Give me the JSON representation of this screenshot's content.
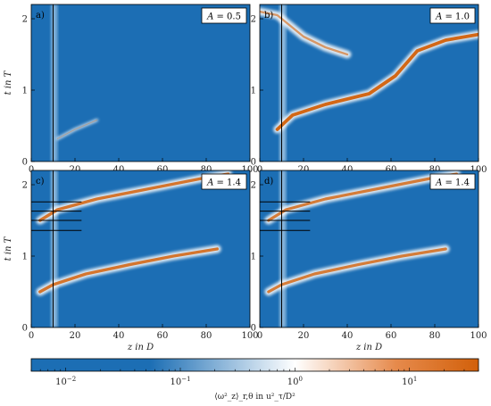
{
  "chart_data": [
    {
      "type": "heatmap",
      "panel": "a)",
      "annotation": "A = 0.5",
      "annotation_var": "A",
      "annotation_value": "= 0.5",
      "xlabel": "",
      "ylabel": "t in T",
      "xlim": [
        0,
        100
      ],
      "ylim": [
        0,
        2.2
      ],
      "xticks": [
        0,
        20,
        40,
        60,
        80,
        100
      ],
      "yticks": [
        0,
        1,
        2
      ],
      "vline_z": 10,
      "hlines": [],
      "features": [
        {
          "kind": "band",
          "z0": 9,
          "z1": 12,
          "t0": 0,
          "t1": 2.2,
          "intensity": 0.25
        },
        {
          "kind": "streak",
          "points": [
            [
              12,
              0.32
            ],
            [
              20,
              0.45
            ],
            [
              30,
              0.58
            ]
          ],
          "intensity": 0.3
        }
      ]
    },
    {
      "type": "heatmap",
      "panel": "b)",
      "annotation": "A = 1.0",
      "annotation_var": "A",
      "annotation_value": "= 1.0",
      "xlabel": "",
      "ylabel": "",
      "xlim": [
        0,
        100
      ],
      "ylim": [
        0,
        2.2
      ],
      "xticks": [
        0,
        20,
        40,
        60,
        80,
        100
      ],
      "yticks": [
        0,
        1,
        2
      ],
      "vline_z": 10,
      "hlines": [],
      "features": [
        {
          "kind": "band",
          "z0": 9,
          "z1": 12,
          "t0": 0,
          "t1": 2.2,
          "intensity": 0.35
        },
        {
          "kind": "wave",
          "points": [
            [
              8,
              0.45
            ],
            [
              15,
              0.65
            ],
            [
              30,
              0.8
            ],
            [
              50,
              0.95
            ],
            [
              62,
              1.2
            ],
            [
              72,
              1.55
            ],
            [
              85,
              1.7
            ],
            [
              100,
              1.78
            ]
          ],
          "intensity": 0.95
        },
        {
          "kind": "wave",
          "points": [
            [
              0,
              2.1
            ],
            [
              8,
              2.05
            ],
            [
              20,
              1.75
            ],
            [
              30,
              1.6
            ],
            [
              40,
              1.5
            ]
          ],
          "intensity": 0.6
        }
      ]
    },
    {
      "type": "heatmap",
      "panel": "c)",
      "annotation": "A = 1.4",
      "annotation_var": "A",
      "annotation_value": "= 1.4",
      "xlabel": "z in D",
      "ylabel": "t in T",
      "xlim": [
        0,
        100
      ],
      "ylim": [
        0,
        2.2
      ],
      "xticks": [
        0,
        20,
        40,
        60,
        80,
        100
      ],
      "yticks": [
        0,
        1,
        2
      ],
      "vline_z": 10,
      "hlines": [
        1.36,
        1.5,
        1.63,
        1.76
      ],
      "features": [
        {
          "kind": "band",
          "z0": 9,
          "z1": 12,
          "t0": 0,
          "t1": 2.2,
          "intensity": 0.3
        },
        {
          "kind": "wave",
          "points": [
            [
              4,
              0.5
            ],
            [
              10,
              0.6
            ],
            [
              25,
              0.75
            ],
            [
              45,
              0.88
            ],
            [
              65,
              1.0
            ],
            [
              85,
              1.1
            ]
          ],
          "intensity": 0.85
        },
        {
          "kind": "wave",
          "points": [
            [
              4,
              1.5
            ],
            [
              12,
              1.65
            ],
            [
              30,
              1.8
            ],
            [
              55,
              1.95
            ],
            [
              80,
              2.1
            ],
            [
              90,
              2.15
            ]
          ],
          "intensity": 0.85
        }
      ]
    },
    {
      "type": "heatmap",
      "panel": "d)",
      "annotation": "A = 1.4",
      "annotation_var": "A",
      "annotation_value": "= 1.4",
      "xlabel": "z in D",
      "ylabel": "",
      "xlim": [
        0,
        100
      ],
      "ylim": [
        0,
        2.2
      ],
      "xticks": [
        0,
        20,
        40,
        60,
        80,
        100
      ],
      "yticks": [
        0,
        1,
        2
      ],
      "vline_z": 10,
      "hlines": [
        1.36,
        1.5,
        1.63,
        1.76
      ],
      "features": [
        {
          "kind": "band",
          "z0": 9,
          "z1": 12,
          "t0": 0,
          "t1": 2.2,
          "intensity": 0.3
        },
        {
          "kind": "wave",
          "points": [
            [
              4,
              0.5
            ],
            [
              10,
              0.6
            ],
            [
              25,
              0.75
            ],
            [
              45,
              0.88
            ],
            [
              65,
              1.0
            ],
            [
              85,
              1.1
            ]
          ],
          "intensity": 0.8
        },
        {
          "kind": "wave",
          "points": [
            [
              4,
              1.5
            ],
            [
              12,
              1.65
            ],
            [
              30,
              1.8
            ],
            [
              55,
              1.95
            ],
            [
              80,
              2.1
            ],
            [
              90,
              2.15
            ]
          ],
          "intensity": 0.8
        }
      ]
    }
  ],
  "colorbar": {
    "scale": "log",
    "min": 0.005,
    "max": 40,
    "ticks": [
      {
        "value": 0.01,
        "label": "10",
        "exp": "−2"
      },
      {
        "value": 0.1,
        "label": "10",
        "exp": "−1"
      },
      {
        "value": 1,
        "label": "10",
        "exp": "0"
      },
      {
        "value": 10,
        "label": "10",
        "exp": "1"
      }
    ],
    "label": "⟨ω²_z⟩_r,θ in u²_τ/D²",
    "colors": {
      "low": "#1c6eb4",
      "mid": "#ffffff",
      "high": "#d2600a"
    }
  }
}
